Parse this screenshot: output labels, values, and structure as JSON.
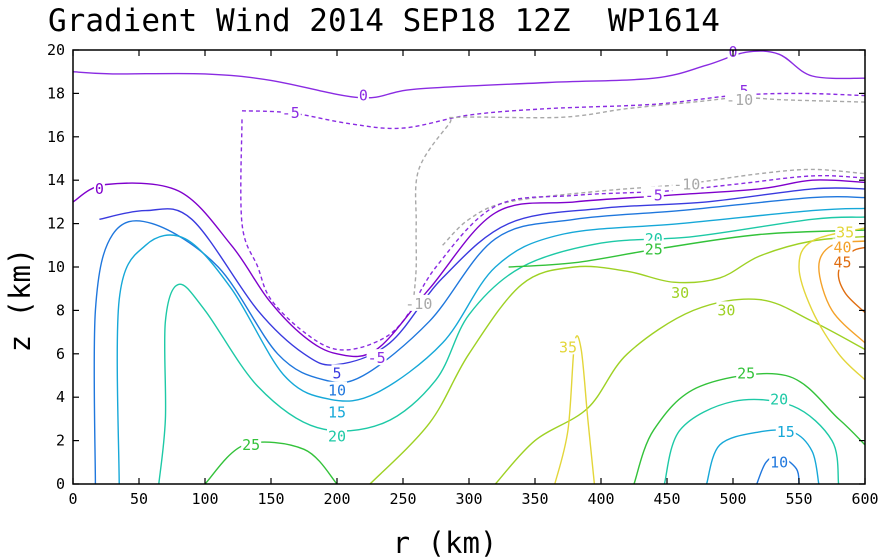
{
  "chart_data": {
    "type": "contour",
    "title": "Gradient Wind 2014 SEP18 12Z  WP1614",
    "xlabel": "r (km)",
    "ylabel": "z (km)",
    "xlim": [
      0,
      600
    ],
    "ylim": [
      0,
      20
    ],
    "xticks": [
      0,
      50,
      100,
      150,
      200,
      250,
      300,
      350,
      400,
      450,
      500,
      550,
      600
    ],
    "yticks": [
      0,
      2,
      4,
      6,
      8,
      10,
      12,
      14,
      16,
      18,
      20
    ],
    "grid": false,
    "contours": [
      {
        "level": 0,
        "color": "#8a2be2",
        "style": "solid",
        "points": [
          [
            0,
            19.0
          ],
          [
            30,
            18.9
          ],
          [
            100,
            18.9
          ],
          [
            150,
            18.6
          ],
          [
            218,
            17.8
          ],
          [
            260,
            18.2
          ],
          [
            360,
            18.5
          ],
          [
            440,
            18.7
          ],
          [
            480,
            19.3
          ],
          [
            510,
            19.9
          ],
          [
            535,
            19.8
          ],
          [
            560,
            18.8
          ],
          [
            600,
            18.7
          ]
        ],
        "labels": [
          [
            220,
            17.9
          ],
          [
            500,
            19.9
          ]
        ]
      },
      {
        "level": -5,
        "color": "#8a2be2",
        "style": "dashed",
        "points": [
          [
            128,
            17.2
          ],
          [
            165,
            17.1
          ],
          [
            210,
            16.6
          ],
          [
            250,
            16.4
          ],
          [
            300,
            17.0
          ],
          [
            360,
            17.3
          ],
          [
            440,
            17.5
          ],
          [
            500,
            17.9
          ],
          [
            550,
            18.0
          ],
          [
            600,
            17.9
          ]
        ],
        "labels": [
          [
            165,
            17.1
          ],
          [
            505,
            18.1
          ]
        ]
      },
      {
        "level": -10,
        "color": "#a8a8a8",
        "style": "dashed",
        "points": [
          [
            600,
            17.6
          ],
          [
            540,
            17.7
          ],
          [
            505,
            17.8
          ],
          [
            470,
            17.6
          ],
          [
            420,
            17.3
          ],
          [
            370,
            16.9
          ],
          [
            292,
            16.9
          ],
          [
            285,
            16.6
          ],
          [
            262,
            14.5
          ],
          [
            260,
            12.0
          ],
          [
            260,
            10.0
          ],
          [
            258,
            8.5
          ]
        ],
        "labels": [
          [
            505,
            17.7
          ],
          [
            262,
            8.3
          ]
        ]
      },
      {
        "level": -10,
        "color": "#a8a8a8",
        "style": "dashed",
        "points": [
          [
            280,
            11.0
          ],
          [
            300,
            12.2
          ],
          [
            330,
            13.0
          ],
          [
            400,
            13.5
          ],
          [
            460,
            13.8
          ],
          [
            520,
            14.3
          ],
          [
            560,
            14.5
          ],
          [
            600,
            14.3
          ]
        ],
        "labels": [
          [
            465,
            13.8
          ]
        ]
      },
      {
        "level": -5,
        "color": "#8a2be2",
        "style": "dashed",
        "points": [
          [
            128,
            16.8
          ],
          [
            128,
            12.0
          ],
          [
            140,
            10.0
          ],
          [
            150,
            8.5
          ],
          [
            175,
            7.0
          ],
          [
            200,
            6.2
          ],
          [
            228,
            6.5
          ],
          [
            250,
            7.5
          ],
          [
            275,
            10.0
          ],
          [
            320,
            12.8
          ],
          [
            380,
            13.3
          ],
          [
            450,
            13.5
          ],
          [
            500,
            13.8
          ],
          [
            560,
            14.2
          ],
          [
            600,
            14.1
          ]
        ],
        "labels": [
          [
            230,
            5.8
          ],
          [
            440,
            13.3
          ]
        ]
      },
      {
        "level": 0,
        "color": "#7f00cc",
        "style": "solid",
        "points": [
          [
            0,
            13.0
          ],
          [
            25,
            13.8
          ],
          [
            80,
            13.5
          ],
          [
            120,
            11.0
          ],
          [
            148,
            8.5
          ],
          [
            175,
            6.8
          ],
          [
            200,
            6.0
          ],
          [
            230,
            6.2
          ],
          [
            270,
            9.0
          ],
          [
            320,
            12.5
          ],
          [
            380,
            13.0
          ],
          [
            450,
            13.3
          ],
          [
            520,
            13.6
          ],
          [
            560,
            14.0
          ],
          [
            600,
            13.9
          ]
        ],
        "labels": [
          [
            20,
            13.6
          ]
        ]
      },
      {
        "level": 5,
        "color": "#3a3adf",
        "style": "solid",
        "points": [
          [
            20,
            12.2
          ],
          [
            55,
            12.6
          ],
          [
            90,
            12.2
          ],
          [
            140,
            8.0
          ],
          [
            175,
            6.0
          ],
          [
            200,
            5.5
          ],
          [
            240,
            6.5
          ],
          [
            280,
            9.5
          ],
          [
            330,
            12.0
          ],
          [
            400,
            12.7
          ],
          [
            480,
            13.0
          ],
          [
            560,
            13.6
          ],
          [
            600,
            13.6
          ]
        ],
        "labels": [
          [
            200,
            5.1
          ]
        ]
      },
      {
        "level": 10,
        "color": "#1f77dd",
        "style": "solid",
        "points": [
          [
            17,
            0
          ],
          [
            17,
            8.0
          ],
          [
            30,
            11.5
          ],
          [
            60,
            12.0
          ],
          [
            110,
            10.0
          ],
          [
            155,
            6.0
          ],
          [
            190,
            4.8
          ],
          [
            220,
            5.0
          ],
          [
            270,
            7.5
          ],
          [
            320,
            11.3
          ],
          [
            380,
            12.2
          ],
          [
            460,
            12.6
          ],
          [
            560,
            13.2
          ],
          [
            600,
            13.2
          ]
        ],
        "labels": [
          [
            200,
            4.3
          ],
          [
            535,
            1.0
          ]
        ]
      },
      {
        "level": 10,
        "color": "#1f77dd",
        "style": "solid",
        "points": [
          [
            518,
            0
          ],
          [
            525,
            1.0
          ],
          [
            535,
            1.3
          ],
          [
            548,
            0.7
          ],
          [
            550,
            0
          ]
        ],
        "labels": []
      },
      {
        "level": 15,
        "color": "#16a8d8",
        "style": "solid",
        "points": [
          [
            35,
            0
          ],
          [
            35,
            8.5
          ],
          [
            55,
            11.0
          ],
          [
            85,
            11.3
          ],
          [
            120,
            9.0
          ],
          [
            160,
            5.0
          ],
          [
            195,
            3.9
          ],
          [
            230,
            4.2
          ],
          [
            280,
            6.5
          ],
          [
            320,
            10.0
          ],
          [
            370,
            11.5
          ],
          [
            460,
            12.0
          ],
          [
            560,
            12.6
          ],
          [
            600,
            12.7
          ]
        ],
        "labels": [
          [
            200,
            3.3
          ],
          [
            540,
            2.4
          ]
        ]
      },
      {
        "level": 15,
        "color": "#16a8d8",
        "style": "solid",
        "points": [
          [
            480,
            0
          ],
          [
            490,
            1.8
          ],
          [
            520,
            2.4
          ],
          [
            545,
            2.4
          ],
          [
            560,
            1.5
          ],
          [
            565,
            0
          ]
        ],
        "labels": []
      },
      {
        "level": 20,
        "color": "#1dc9a6",
        "style": "solid",
        "points": [
          [
            65,
            0
          ],
          [
            70,
            3.0
          ],
          [
            70,
            7.5
          ],
          [
            80,
            9.2
          ],
          [
            100,
            8.0
          ],
          [
            140,
            4.5
          ],
          [
            185,
            2.6
          ],
          [
            235,
            2.8
          ],
          [
            275,
            4.8
          ],
          [
            300,
            7.8
          ],
          [
            340,
            10.0
          ],
          [
            400,
            11.1
          ],
          [
            470,
            11.4
          ],
          [
            560,
            12.2
          ],
          [
            600,
            12.3
          ]
        ],
        "labels": [
          [
            200,
            2.2
          ],
          [
            440,
            11.3
          ],
          [
            535,
            3.9
          ]
        ]
      },
      {
        "level": 20,
        "color": "#1dc9a6",
        "style": "solid",
        "points": [
          [
            448,
            0
          ],
          [
            460,
            2.5
          ],
          [
            500,
            3.8
          ],
          [
            545,
            3.6
          ],
          [
            575,
            2.0
          ],
          [
            580,
            0
          ]
        ],
        "labels": []
      },
      {
        "level": 25,
        "color": "#33c23a",
        "style": "solid",
        "points": [
          [
            100,
            0
          ],
          [
            130,
            1.8
          ],
          [
            175,
            1.6
          ],
          [
            200,
            0
          ]
        ],
        "labels": [
          [
            135,
            1.8
          ]
        ]
      },
      {
        "level": 25,
        "color": "#33c23a",
        "style": "solid",
        "points": [
          [
            425,
            0
          ],
          [
            440,
            2.5
          ],
          [
            475,
            4.5
          ],
          [
            540,
            5.0
          ],
          [
            580,
            3.0
          ],
          [
            600,
            1.8
          ]
        ],
        "labels": [
          [
            510,
            5.1
          ]
        ]
      },
      {
        "level": 25,
        "color": "#33c23a",
        "style": "solid",
        "points": [
          [
            330,
            10.0
          ],
          [
            380,
            10.2
          ],
          [
            440,
            10.8
          ],
          [
            520,
            11.5
          ],
          [
            600,
            11.7
          ]
        ],
        "labels": [
          [
            440,
            10.8
          ]
        ]
      },
      {
        "level": 30,
        "color": "#9ed124",
        "style": "solid",
        "points": [
          [
            225,
            0
          ],
          [
            270,
            2.8
          ],
          [
            300,
            6.0
          ],
          [
            340,
            9.2
          ],
          [
            380,
            10.0
          ],
          [
            420,
            9.8
          ],
          [
            455,
            9.3
          ],
          [
            490,
            9.5
          ],
          [
            520,
            10.5
          ],
          [
            560,
            11.2
          ],
          [
            600,
            11.4
          ]
        ],
        "labels": [
          [
            460,
            8.8
          ],
          [
            495,
            8.0
          ]
        ]
      },
      {
        "level": 30,
        "color": "#9ed124",
        "style": "solid",
        "points": [
          [
            320,
            0
          ],
          [
            350,
            2.0
          ],
          [
            390,
            3.5
          ],
          [
            420,
            6.0
          ],
          [
            470,
            8.0
          ],
          [
            520,
            8.5
          ],
          [
            560,
            7.5
          ],
          [
            600,
            6.2
          ]
        ],
        "labels": []
      },
      {
        "level": 35,
        "color": "#e3d63a",
        "style": "solid",
        "points": [
          [
            365,
            0
          ],
          [
            375,
            2.5
          ],
          [
            380,
            6.5
          ],
          [
            385,
            6.2
          ],
          [
            390,
            3.0
          ],
          [
            395,
            0
          ]
        ],
        "labels": [
          [
            375,
            6.3
          ]
        ]
      },
      {
        "level": 35,
        "color": "#e3d63a",
        "style": "solid",
        "points": [
          [
            600,
            4.8
          ],
          [
            580,
            6.0
          ],
          [
            560,
            8.0
          ],
          [
            550,
            10.0
          ],
          [
            560,
            11.2
          ],
          [
            600,
            11.8
          ]
        ],
        "labels": [
          [
            585,
            11.6
          ]
        ]
      },
      {
        "level": 40,
        "color": "#f4a22a",
        "style": "solid",
        "points": [
          [
            600,
            6.5
          ],
          [
            575,
            8.0
          ],
          [
            565,
            10.0
          ],
          [
            575,
            11.0
          ],
          [
            600,
            11.2
          ]
        ],
        "labels": [
          [
            583,
            10.9
          ]
        ]
      },
      {
        "level": 45,
        "color": "#e06d10",
        "style": "solid",
        "points": [
          [
            600,
            7.9
          ],
          [
            585,
            8.8
          ],
          [
            580,
            9.8
          ],
          [
            590,
            10.7
          ],
          [
            600,
            10.9
          ]
        ],
        "labels": [
          [
            583,
            10.2
          ]
        ]
      }
    ]
  }
}
